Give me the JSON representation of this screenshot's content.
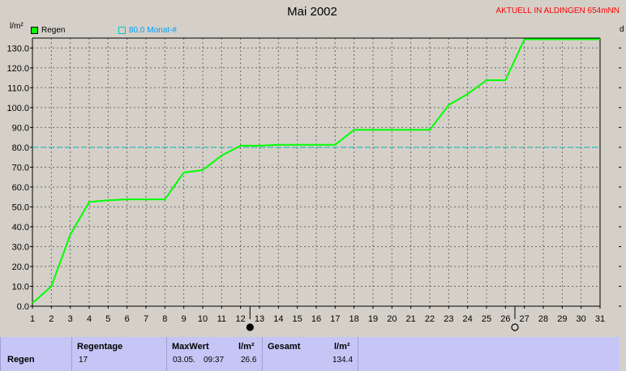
{
  "title": "Mai 2002",
  "station": "AKTUELL IN ALDINGEN 654mNN",
  "unit_left": "l/m²",
  "unit_right": "d",
  "legend": {
    "rain_label": "Regen",
    "rain_color": "#00ff00",
    "month_label": "80.0 Monat-#",
    "month_color": "#00c8c8"
  },
  "chart_data": {
    "type": "line",
    "x": [
      1,
      2,
      3,
      4,
      5,
      6,
      7,
      8,
      9,
      10,
      11,
      12,
      13,
      14,
      15,
      16,
      17,
      18,
      19,
      20,
      21,
      22,
      23,
      24,
      25,
      26,
      27,
      28,
      29,
      30,
      31
    ],
    "series": [
      {
        "name": "Regen",
        "color": "#00ff00",
        "values": [
          1.5,
          10.0,
          36.0,
          52.5,
          53.3,
          53.8,
          53.8,
          53.8,
          67.3,
          68.5,
          75.8,
          80.8,
          80.8,
          81.3,
          81.3,
          81.3,
          81.3,
          88.8,
          88.8,
          88.8,
          88.8,
          88.8,
          101.3,
          106.8,
          113.8,
          113.8,
          134.4,
          134.4,
          134.4,
          134.4,
          134.4
        ]
      }
    ],
    "reference_line": {
      "label": "80.0 Monat-#",
      "value": 80.0,
      "color": "#00c8c8"
    },
    "ylim": [
      0,
      135
    ],
    "yticks": [
      "0.0",
      "10.0",
      "20.0",
      "30.0",
      "40.0",
      "50.0",
      "60.0",
      "70.0",
      "80.0",
      "90.0",
      "100.0",
      "110.0",
      "120.0",
      "130.0"
    ],
    "xticks": [
      "1",
      "2",
      "3",
      "4",
      "5",
      "6",
      "7",
      "8",
      "9",
      "10",
      "11",
      "12",
      "13",
      "14",
      "15",
      "16",
      "17",
      "18",
      "19",
      "20",
      "21",
      "22",
      "23",
      "24",
      "25",
      "26",
      "27",
      "28",
      "29",
      "30",
      "31"
    ],
    "grid": true,
    "markers": [
      {
        "x": 12.5,
        "style": "filled-circle"
      },
      {
        "x": 26.5,
        "style": "open-circle"
      }
    ]
  },
  "stats": {
    "row_label": "Regen",
    "regentage_label": "Regentage",
    "regentage_value": "17",
    "maxwert_label": "MaxWert",
    "maxwert_unit": "l/m²",
    "maxwert_date": "03.05.",
    "maxwert_time": "09:37",
    "maxwert_value": "26.6",
    "gesamt_label": "Gesamt",
    "gesamt_unit": "l/m²",
    "gesamt_value": "134.4"
  }
}
